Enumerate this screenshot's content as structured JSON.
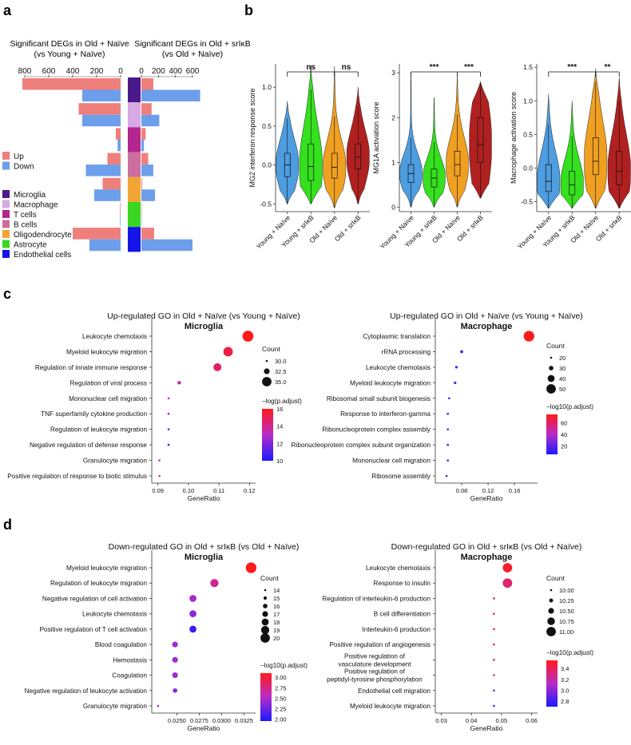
{
  "panels": {
    "a": {
      "label": "a",
      "left_title": [
        "Significant DEGs in Old + Naïve",
        "(vs Young + Naïve)"
      ],
      "right_title": [
        "Significant DEGs in Old + srIκB",
        "(vs Old + Naïve)"
      ],
      "left_ticks": [
        "800",
        "600",
        "400",
        "200",
        "0"
      ],
      "right_ticks": [
        "0",
        "200",
        "400",
        "600"
      ]
    },
    "b": {
      "label": "b"
    },
    "c": {
      "label": "c"
    },
    "d": {
      "label": "d"
    }
  },
  "legend_a": {
    "direction": [
      {
        "name": "Up",
        "color": "#ef7f7b"
      },
      {
        "name": "Down",
        "color": "#6d9eeb"
      }
    ],
    "cell_types": [
      {
        "name": "Microglia",
        "color": "#4b1a8a"
      },
      {
        "name": "Macrophage",
        "color": "#d9a8e6"
      },
      {
        "name": "T cells",
        "color": "#b3268f"
      },
      {
        "name": "B cells",
        "color": "#cc6e9e"
      },
      {
        "name": "Oligodendrocyte",
        "color": "#f2a535"
      },
      {
        "name": "Astrocyte",
        "color": "#39d622"
      },
      {
        "name": "Endothelial cells",
        "color": "#1414e6"
      }
    ]
  },
  "chart_data": [
    {
      "id": "deg_bars",
      "type": "bar",
      "orientation": "horizontal mirrored",
      "title_left": "Significant DEGs in Old + Naïve (vs Young + Naïve)",
      "title_right": "Significant DEGs in Old + srIκB (vs Old + Naïve)",
      "categories": [
        "Microglia",
        "Macrophage",
        "T cells",
        "B cells",
        "Oligodendrocyte",
        "Astrocyte",
        "Endothelial cells"
      ],
      "left_xlim": [
        0,
        800
      ],
      "right_xlim": [
        0,
        700
      ],
      "series": [
        {
          "name": "Up (Old + Naïve)",
          "values": [
            820,
            350,
            40,
            110,
            150,
            5,
            400
          ]
        },
        {
          "name": "Down (Old + Naïve)",
          "values": [
            320,
            320,
            25,
            290,
            220,
            5,
            260
          ]
        },
        {
          "name": "Up (Old + srIκB)",
          "values": [
            140,
            120,
            50,
            80,
            10,
            5,
            150
          ]
        },
        {
          "name": "Down (Old + srIκB)",
          "values": [
            690,
            210,
            30,
            140,
            160,
            5,
            600
          ]
        }
      ]
    },
    {
      "id": "violin_mg2",
      "type": "violin",
      "ylabel": "MG2 interferon response score",
      "ylim": [
        -0.6,
        1.3
      ],
      "yticks": [
        -0.5,
        0.0,
        0.5,
        1.0
      ],
      "ytick_labels": [
        "-0.5",
        "0.0",
        "0.5",
        "1.0"
      ],
      "categories": [
        "Young + Naïve",
        "Young + srIκB",
        "Old + Naïve",
        "Old + srIκB"
      ],
      "colors": [
        "#4d9de0",
        "#35e01e",
        "#f0a020",
        "#b02020"
      ],
      "medians": [
        0.0,
        -0.02,
        -0.03,
        0.1
      ],
      "q1": [
        -0.15,
        -0.2,
        -0.17,
        -0.05
      ],
      "q3": [
        0.15,
        0.27,
        0.15,
        0.27
      ],
      "mins": [
        -0.5,
        -0.5,
        -0.55,
        -0.5
      ],
      "maxs": [
        0.82,
        1.28,
        1.27,
        1.0
      ],
      "significance": [
        {
          "pair": [
            0,
            2
          ],
          "label": "ns"
        },
        {
          "pair": [
            2,
            3
          ],
          "label": "ns"
        }
      ]
    },
    {
      "id": "violin_mg1a",
      "type": "violin",
      "ylabel": "MG1A activation score",
      "ylim": [
        -0.1,
        3.2
      ],
      "yticks": [
        0,
        1,
        2,
        3
      ],
      "ytick_labels": [
        "0",
        "1",
        "2",
        "3"
      ],
      "categories": [
        "Young + Naïve",
        "Young + srIκB",
        "Old + Naïve",
        "Old + srIκB"
      ],
      "colors": [
        "#4d9de0",
        "#35e01e",
        "#f0a020",
        "#b02020"
      ],
      "medians": [
        0.75,
        0.65,
        0.95,
        1.4
      ],
      "q1": [
        0.55,
        0.45,
        0.7,
        1.0
      ],
      "q3": [
        0.95,
        0.85,
        1.25,
        2.0
      ],
      "mins": [
        0.0,
        0.0,
        0.0,
        0.2
      ],
      "maxs": [
        3.0,
        2.45,
        2.95,
        2.8
      ],
      "significance": [
        {
          "pair": [
            0,
            2
          ],
          "label": "***"
        },
        {
          "pair": [
            2,
            3
          ],
          "label": "***"
        }
      ]
    },
    {
      "id": "violin_mac",
      "type": "violin",
      "ylabel": "Macrophage activation score",
      "ylim": [
        -0.65,
        1.55
      ],
      "yticks": [
        -0.5,
        0.0,
        0.5,
        1.0,
        1.5
      ],
      "ytick_labels": [
        "-0.5",
        "0.0",
        "0.5",
        "1.0",
        "1.5"
      ],
      "categories": [
        "Young + Naïve",
        "Young + srIκB",
        "Old + Naïve",
        "Old + srIκB"
      ],
      "colors": [
        "#4d9de0",
        "#35e01e",
        "#f0a020",
        "#b02020"
      ],
      "medians": [
        -0.2,
        -0.25,
        0.1,
        -0.05
      ],
      "q1": [
        -0.35,
        -0.4,
        -0.1,
        -0.25
      ],
      "q3": [
        0.05,
        -0.05,
        0.45,
        0.25
      ],
      "mins": [
        -0.6,
        -0.6,
        -0.6,
        -0.6
      ],
      "maxs": [
        1.1,
        1.0,
        1.48,
        1.35
      ],
      "significance": [
        {
          "pair": [
            0,
            2
          ],
          "label": "***"
        },
        {
          "pair": [
            2,
            3
          ],
          "label": "**"
        }
      ]
    },
    {
      "id": "go_c_microglia",
      "type": "scatter",
      "title": "Up-regulated GO in Old + Naïve (vs Young + Naïve)",
      "subtitle": "Microglia",
      "xlabel": "GeneRatio",
      "xlim": [
        0.088,
        0.122
      ],
      "xticks": [
        0.09,
        0.1,
        0.11,
        0.12
      ],
      "xtick_labels": [
        "0.09",
        "0.10",
        "0.11",
        "0.12"
      ],
      "terms": [
        "Leukocyte chemotaxis",
        "Myeloid leukocyte migration",
        "Regulation of innate immune response",
        "Regulation of viral process",
        "Mononuclear cell migration",
        "TNF superfamily cytokine production",
        "Regulation of leukocyte migration",
        "Negative regulation of defense response",
        "Granulocyte migration",
        "Positive regulation of response to biotic stimulus"
      ],
      "x": [
        0.1195,
        0.113,
        0.1095,
        0.097,
        0.0935,
        0.0935,
        0.0935,
        0.0935,
        0.0905,
        0.0905
      ],
      "count": [
        36,
        35,
        34,
        31,
        30,
        30,
        30,
        30,
        28,
        28
      ],
      "padj_color": [
        16.2,
        15.3,
        14.8,
        13.5,
        12.8,
        12.5,
        11.2,
        10.6,
        13.6,
        13.8
      ],
      "size_legend": {
        "title": "Count",
        "values": [
          30.0,
          32.5,
          35.0
        ],
        "labels": [
          "30.0",
          "32.5",
          "35.0"
        ]
      },
      "color_legend": {
        "title": "−log(p.adjust)",
        "range": [
          10,
          16
        ],
        "labels": [
          "16",
          "14",
          "12",
          "10"
        ],
        "values": [
          16,
          14,
          12,
          10
        ]
      }
    },
    {
      "id": "go_c_macrophage",
      "type": "scatter",
      "title": "Up-regulated GO in Old + Naïve (vs Young + Naïve)",
      "subtitle": "Macrophage",
      "xlabel": "GeneRatio",
      "xlim": [
        0.04,
        0.195
      ],
      "xticks": [
        0.08,
        0.12,
        0.16
      ],
      "xtick_labels": [
        "0.08",
        "0.12",
        "0.16"
      ],
      "terms": [
        "Cytoplasmic translation",
        "rRNA processing",
        "Leukocyte chemotaxis",
        "Myeloid leukocyte migration",
        "Ribosomal small subunit biogenesis",
        "Response to interferon-gamma",
        "Ribonucleoprotein complex assembly",
        "Ribonucleoprotein complex subunit organization",
        "Mononuclear cell migration",
        "Ribosome assembly"
      ],
      "x": [
        0.182,
        0.08,
        0.072,
        0.07,
        0.061,
        0.059,
        0.059,
        0.059,
        0.059,
        0.057
      ],
      "count": [
        55,
        24,
        22,
        22,
        17,
        16,
        16,
        16,
        16,
        13
      ],
      "padj_color": [
        75,
        20,
        15,
        15,
        12,
        11,
        10,
        10,
        10,
        8
      ],
      "size_legend": {
        "title": "Count",
        "values": [
          20,
          30,
          40,
          50
        ],
        "labels": [
          "20",
          "30",
          "40",
          "50"
        ]
      },
      "color_legend": {
        "title": "−log10(p.adjust)",
        "range": [
          5,
          75
        ],
        "labels": [
          "60",
          "40",
          "20"
        ],
        "values": [
          60,
          40,
          20
        ]
      }
    },
    {
      "id": "go_d_microglia",
      "type": "scatter",
      "title": "Down-regulated GO in Old + srIκB (vs Old + Naïve)",
      "subtitle": "Microglia",
      "xlabel": "GeneRatio",
      "xlim": [
        0.0222,
        0.0338
      ],
      "xticks": [
        0.025,
        0.0275,
        0.03,
        0.0325
      ],
      "xtick_labels": [
        "0.0250",
        "0.0275",
        "0.0300",
        "0.0325"
      ],
      "terms": [
        "Myeloid leukocyte migration",
        "Regulation of leukocyte migration",
        "Negative regulation of cell activation",
        "Leukocyte chemotaxis",
        "Positive regulation of T cell activation",
        "Blood coagulation",
        "Hemostasis",
        "Coagulation",
        "Negative regulation of leukocyte activation",
        "Granulocyte migration"
      ],
      "x": [
        0.0333,
        0.0292,
        0.0268,
        0.0268,
        0.0268,
        0.0248,
        0.0248,
        0.0248,
        0.0248,
        0.0229
      ],
      "count": [
        21,
        19,
        18,
        18,
        18,
        17,
        17,
        17,
        16,
        14
      ],
      "padj_color": [
        3.1,
        2.7,
        2.45,
        2.35,
        2.05,
        2.45,
        2.45,
        2.45,
        2.35,
        2.5
      ],
      "size_legend": {
        "title": "Count",
        "values": [
          14,
          15,
          16,
          17,
          18,
          19,
          20
        ],
        "labels": [
          "14",
          "15",
          "16",
          "17",
          "18",
          "19",
          "20"
        ]
      },
      "color_legend": {
        "title": "−log10(p.adjust)",
        "range": [
          1.95,
          3.1
        ],
        "labels": [
          "3.00",
          "2.75",
          "2.50",
          "2.25",
          "2.00"
        ],
        "values": [
          3.0,
          2.75,
          2.5,
          2.25,
          2.0
        ]
      }
    },
    {
      "id": "go_d_macrophage",
      "type": "scatter",
      "title": "Down-regulated GO in Old + srIκB (vs Old + Naïve)",
      "subtitle": "Macrophage",
      "xlabel": "GeneRatio",
      "xlim": [
        0.028,
        0.062
      ],
      "xticks": [
        0.03,
        0.04,
        0.05,
        0.06
      ],
      "xtick_labels": [
        "0.03",
        "0.04",
        "0.05",
        "0.06"
      ],
      "terms": [
        "Leukocyte chemotaxis",
        "Response to insulin",
        "Regulation of interleukin-6 production",
        "B cell differentiation",
        "Interleukin-6 production",
        "Positive regulation of angiogenesis",
        "Positive regulation of\nvasculature development",
        "Positive regulation of\npeptidyl-tyrosine phosphorylation",
        "Endothelial cell migration",
        "Myeloid leukocyte migration"
      ],
      "x": [
        0.052,
        0.052,
        0.0475,
        0.0475,
        0.0475,
        0.0475,
        0.0475,
        0.0475,
        0.0475,
        0.0475
      ],
      "count": [
        11,
        11,
        10,
        10,
        10,
        10,
        10,
        10,
        10,
        10
      ],
      "padj_color": [
        3.5,
        3.35,
        3.35,
        3.35,
        3.35,
        3.35,
        3.3,
        3.3,
        2.85,
        2.75
      ],
      "size_legend": {
        "title": "Count",
        "values": [
          10.0,
          10.25,
          10.5,
          10.75,
          11.0
        ],
        "labels": [
          "10.00",
          "10.25",
          "10.50",
          "10.75",
          "11.00"
        ]
      },
      "color_legend": {
        "title": "−log10(p.adjust)",
        "range": [
          2.7,
          3.55
        ],
        "labels": [
          "3.4",
          "3.2",
          "3.0",
          "2.8"
        ],
        "values": [
          3.4,
          3.2,
          3.0,
          2.8
        ]
      }
    }
  ]
}
